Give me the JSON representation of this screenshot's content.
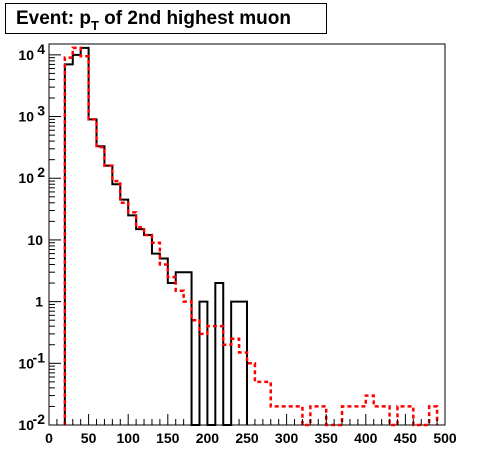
{
  "title": {
    "prefix": "Event: p",
    "subscript": "T",
    "suffix": " of 2nd highest muon"
  },
  "chart_data": {
    "type": "step",
    "title": "Event: p_T of 2nd highest muon",
    "xlabel": "",
    "ylabel": "",
    "xlim": [
      0,
      500
    ],
    "ylim": [
      0.01,
      15000
    ],
    "y_scale": "log",
    "bin_width": 10,
    "x_ticks": [
      0,
      50,
      100,
      150,
      200,
      250,
      300,
      350,
      400,
      450,
      500
    ],
    "y_ticks": [
      {
        "value": 0.01,
        "base": "10",
        "exp": "-2"
      },
      {
        "value": 0.1,
        "base": "10",
        "exp": "-1"
      },
      {
        "value": 1,
        "base": "1",
        "exp": ""
      },
      {
        "value": 10,
        "base": "10",
        "exp": ""
      },
      {
        "value": 100,
        "base": "10",
        "exp": "2"
      },
      {
        "value": 1000,
        "base": "10",
        "exp": "3"
      },
      {
        "value": 10000,
        "base": "10",
        "exp": "4"
      }
    ],
    "series": [
      {
        "style": "solid",
        "color": "#000000",
        "x_edges": [
          20,
          30,
          40,
          50,
          60,
          70,
          80,
          90,
          100,
          110,
          120,
          130,
          140,
          150,
          160,
          170,
          180,
          190,
          200,
          210,
          220,
          230,
          240,
          250
        ],
        "values": [
          7000,
          10000,
          13000,
          900,
          330,
          160,
          80,
          45,
          25,
          15,
          12,
          6,
          5,
          2,
          3,
          3,
          0.01,
          1,
          0.01,
          2,
          0.01,
          1,
          1
        ]
      },
      {
        "style": "dashed",
        "color": "#ff0000",
        "x_edges": [
          20,
          30,
          40,
          50,
          60,
          70,
          80,
          90,
          100,
          110,
          120,
          130,
          140,
          150,
          160,
          170,
          180,
          190,
          200,
          210,
          220,
          230,
          240,
          250,
          260,
          270,
          280,
          290,
          300,
          310,
          320,
          330,
          340,
          350,
          360,
          370,
          380,
          390,
          400,
          410,
          420,
          430,
          440,
          450,
          460,
          470,
          480,
          490
        ],
        "values": [
          9000,
          13000,
          9500,
          900,
          320,
          160,
          90,
          40,
          28,
          16,
          12,
          9,
          4,
          2.5,
          1.5,
          1,
          0.5,
          0.3,
          0.4,
          0.4,
          0.2,
          0.25,
          0.15,
          0.1,
          0.05,
          0.05,
          0.02,
          0.02,
          0.02,
          0.02,
          0.01,
          0.02,
          0.02,
          0.01,
          0.01,
          0.02,
          0.02,
          0.02,
          0.03,
          0.02,
          0.02,
          0.01,
          0.02,
          0.02,
          0.01,
          0.01,
          0.02
        ]
      }
    ]
  }
}
